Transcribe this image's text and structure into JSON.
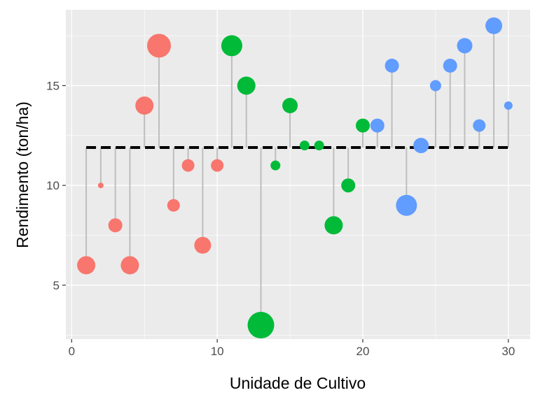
{
  "chart_data": {
    "type": "scatter",
    "subtype": "lollipop",
    "xlabel": "Unidade de Cultivo",
    "ylabel": "Rendimento (ton/ha)",
    "xlim": [
      -0.4,
      31.5
    ],
    "ylim": [
      2.3,
      18.8
    ],
    "x_ticks": [
      0,
      10,
      20,
      30
    ],
    "y_ticks": [
      5,
      10,
      15
    ],
    "grid": true,
    "legend": "none",
    "reference_line": {
      "y": 11.9,
      "style": "dashed",
      "color": "#000000",
      "x_from": 1,
      "x_to": 30
    },
    "stem_color": "#BEBEBE",
    "background": "#EBEBEB",
    "groups": [
      {
        "color": "#F8766D",
        "x": [
          1,
          2,
          3,
          4,
          5,
          6,
          7,
          8,
          9,
          10
        ],
        "y": [
          6,
          10,
          8,
          6,
          14,
          17,
          9,
          11,
          7,
          11
        ],
        "size": [
          13,
          4,
          10,
          13,
          13,
          17,
          9,
          9,
          12,
          9
        ]
      },
      {
        "color": "#00BA38",
        "x": [
          11,
          12,
          13,
          14,
          15,
          16,
          17,
          18,
          19,
          20
        ],
        "y": [
          17,
          15,
          3,
          11,
          14,
          12,
          12,
          8,
          10,
          13
        ],
        "size": [
          15,
          13,
          19,
          7,
          11,
          7,
          7,
          13,
          10,
          10
        ]
      },
      {
        "color": "#619CFF",
        "x": [
          21,
          22,
          23,
          24,
          25,
          26,
          27,
          28,
          29,
          30
        ],
        "y": [
          13,
          16,
          9,
          12,
          15,
          16,
          17,
          13,
          18,
          14
        ],
        "size": [
          10,
          10,
          15,
          11,
          8,
          10,
          11,
          9,
          12,
          6
        ]
      }
    ]
  }
}
